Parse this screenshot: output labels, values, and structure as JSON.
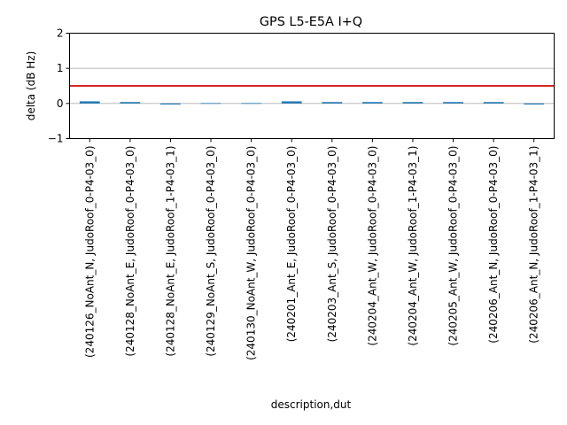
{
  "chart_data": {
    "type": "bar",
    "title": "GPS L5-E5A I+Q",
    "xlabel": "description,dut",
    "ylabel": "delta (dB Hz)",
    "ylim": [
      -1,
      2
    ],
    "yticks": [
      -1,
      0,
      1,
      2
    ],
    "grid_y_values": [
      0,
      1
    ],
    "threshold": 0.5,
    "categories": [
      "(240126_NoAnt_N, JudoRoof_0-P4-03_0)",
      "(240128_NoAnt_E, JudoRoof_0-P4-03_0)",
      "(240128_NoAnt_E, JudoRoof_1-P4-03_1)",
      "(240129_NoAnt_S, JudoRoof_0-P4-03_0)",
      "(240130_NoAnt_W, JudoRoof_0-P4-03_0)",
      "(240201_Ant_E, JudoRoof_0-P4-03_0)",
      "(240203_Ant_S, JudoRoof_0-P4-03_0)",
      "(240204_Ant_W, JudoRoof_0-P4-03_0)",
      "(240204_Ant_W, JudoRoof_1-P4-03_1)",
      "(240205_Ant_W, JudoRoof_0-P4-03_0)",
      "(240206_Ant_N, JudoRoof_0-P4-03_0)",
      "(240206_Ant_N, JudoRoof_1-P4-03_1)"
    ],
    "values": [
      0.06,
      0.04,
      -0.03,
      0.02,
      0.0,
      0.06,
      0.04,
      0.04,
      0.04,
      0.04,
      0.04,
      -0.03
    ],
    "colors": {
      "bar": "#1f77b4",
      "threshold": "#d62728",
      "grid": "#b0b0b0",
      "axis": "#000000"
    }
  }
}
